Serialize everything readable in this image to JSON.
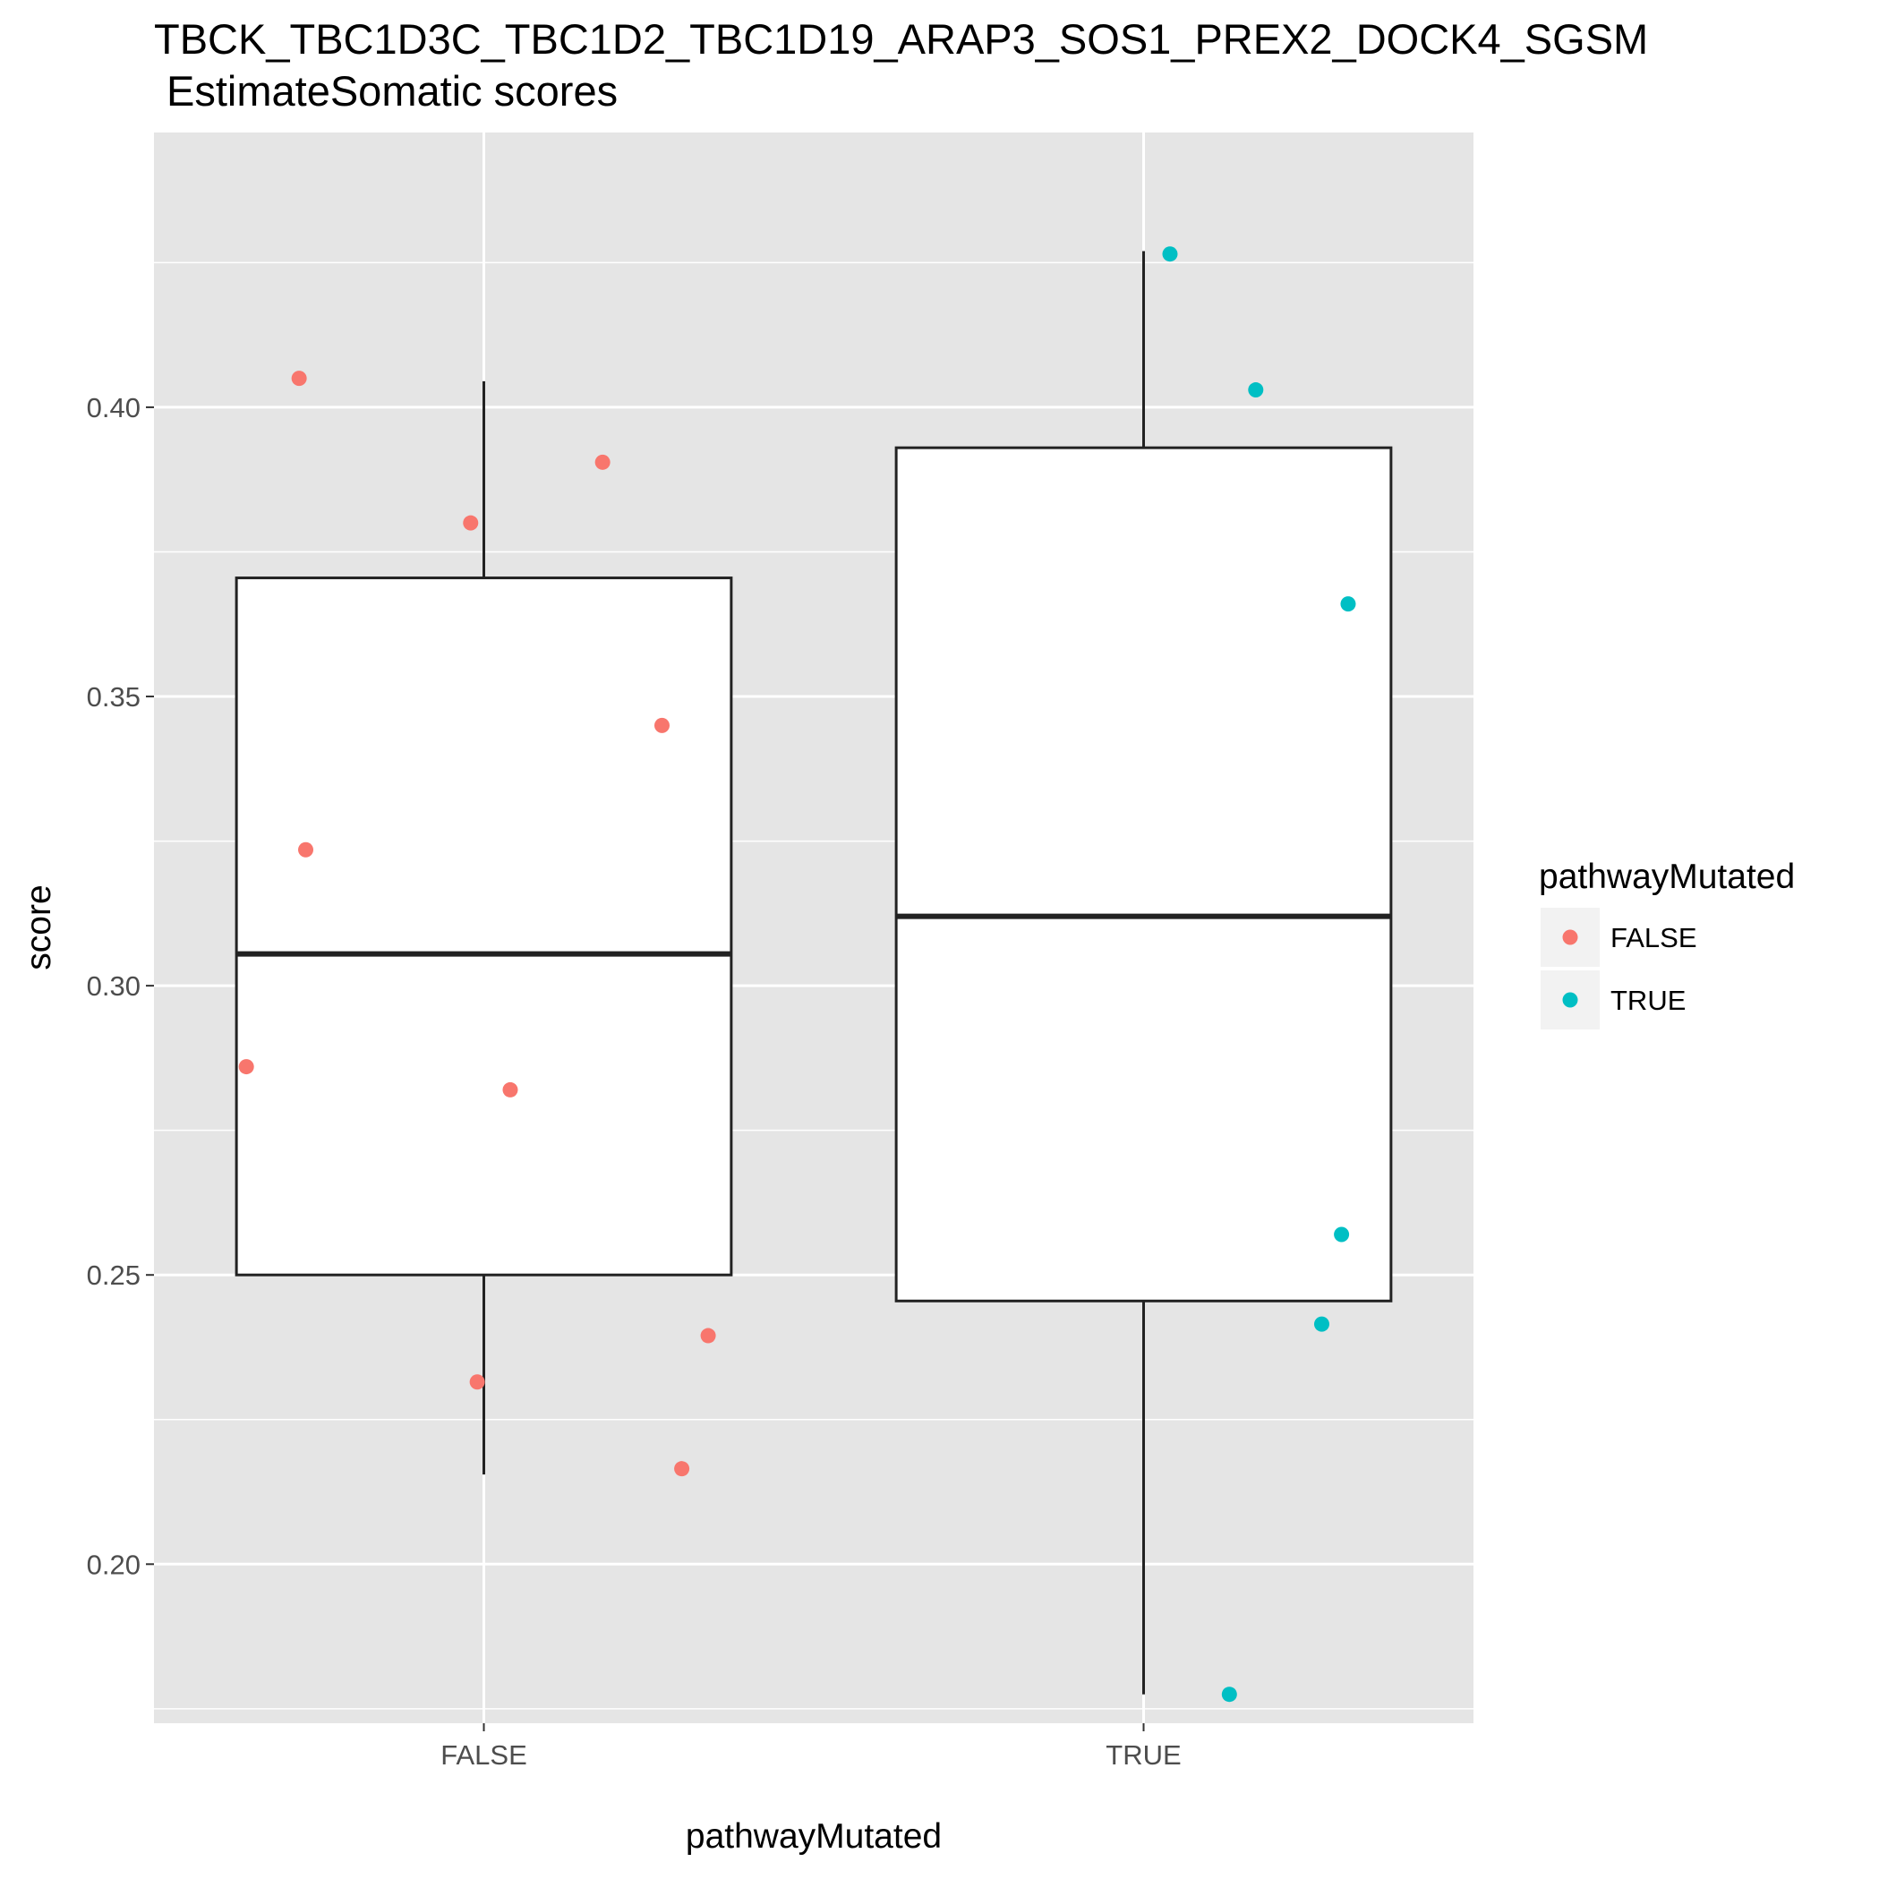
{
  "chart_data": {
    "type": "boxplot",
    "title": "TBCK_TBC1D3C_TBC1D2_TBC1D19_ARAP3_SOS1_PREX2_DOCK4_SGSM",
    "subtitle": "EstimateSomatic scores",
    "xlabel": "pathwayMutated",
    "ylabel": "score",
    "categories": [
      "FALSE",
      "TRUE"
    ],
    "ylim": [
      0.1725,
      0.4475
    ],
    "yticks": [
      0.2,
      0.25,
      0.3,
      0.35,
      0.4
    ],
    "ytick_labels": [
      "0.20",
      "0.25",
      "0.30",
      "0.35",
      "0.40"
    ],
    "grid": true,
    "boxes": [
      {
        "category": "FALSE",
        "whisker_low": 0.2155,
        "q1": 0.25,
        "median": 0.3055,
        "q3": 0.3705,
        "whisker_high": 0.4045
      },
      {
        "category": "TRUE",
        "whisker_low": 0.1775,
        "q1": 0.2455,
        "median": 0.312,
        "q3": 0.393,
        "whisker_high": 0.427
      }
    ],
    "points": [
      {
        "category": "FALSE",
        "jitter": -0.36,
        "y": 0.286
      },
      {
        "category": "FALSE",
        "jitter": -0.28,
        "y": 0.405
      },
      {
        "category": "FALSE",
        "jitter": -0.27,
        "y": 0.3235
      },
      {
        "category": "FALSE",
        "jitter": -0.02,
        "y": 0.38
      },
      {
        "category": "FALSE",
        "jitter": -0.01,
        "y": 0.2315
      },
      {
        "category": "FALSE",
        "jitter": 0.04,
        "y": 0.282
      },
      {
        "category": "FALSE",
        "jitter": 0.18,
        "y": 0.3905
      },
      {
        "category": "FALSE",
        "jitter": 0.27,
        "y": 0.345
      },
      {
        "category": "FALSE",
        "jitter": 0.3,
        "y": 0.2165
      },
      {
        "category": "FALSE",
        "jitter": 0.34,
        "y": 0.2395
      },
      {
        "category": "TRUE",
        "jitter": 0.04,
        "y": 0.4265
      },
      {
        "category": "TRUE",
        "jitter": 0.13,
        "y": 0.1775
      },
      {
        "category": "TRUE",
        "jitter": 0.17,
        "y": 0.403
      },
      {
        "category": "TRUE",
        "jitter": 0.27,
        "y": 0.2415
      },
      {
        "category": "TRUE",
        "jitter": 0.3,
        "y": 0.257
      },
      {
        "category": "TRUE",
        "jitter": 0.31,
        "y": 0.366
      }
    ],
    "legend": {
      "title": "pathwayMutated",
      "position": "right",
      "items": [
        {
          "label": "FALSE",
          "color": "#F8766D"
        },
        {
          "label": "TRUE",
          "color": "#00BFC4"
        }
      ]
    },
    "colors": {
      "panel": "#E5E5E5",
      "grid": "#FFFFFF",
      "box_fill": "#FFFFFF",
      "box_line": "#222222",
      "legend_key_bg": "#F2F2F2"
    }
  }
}
